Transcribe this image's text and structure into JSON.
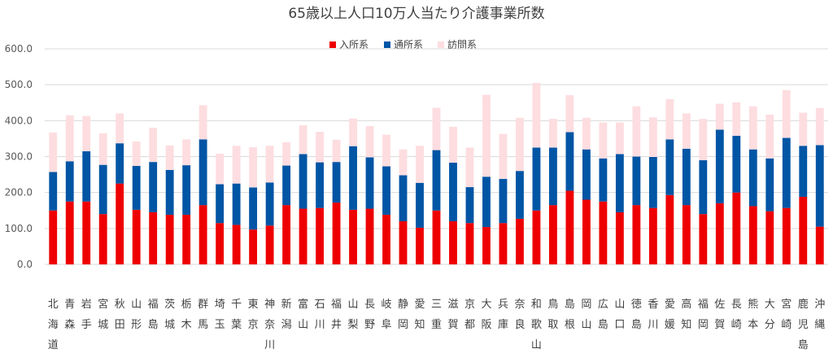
{
  "chart_data": {
    "type": "bar",
    "stacked": true,
    "title": "65歳以上人口10万人当たり介護事業所数",
    "ylim": [
      0,
      600
    ],
    "yticks": [
      "0.0",
      "100.0",
      "200.0",
      "300.0",
      "400.0",
      "500.0",
      "600.0"
    ],
    "grid": true,
    "legend_position": "top-center",
    "categories": [
      "北海道",
      "青森",
      "岩手",
      "宮城",
      "秋田",
      "山形",
      "福島",
      "茨城",
      "栃木",
      "群馬",
      "埼玉",
      "千葉",
      "東京",
      "神奈川",
      "新潟",
      "富山",
      "石川",
      "福井",
      "山梨",
      "長野",
      "岐阜",
      "静岡",
      "愛知",
      "三重",
      "滋賀",
      "京都",
      "大阪",
      "兵庫",
      "奈良",
      "和歌山",
      "鳥取",
      "島根",
      "岡山",
      "広島",
      "山口",
      "徳島",
      "香川",
      "愛媛",
      "高知",
      "福岡",
      "佐賀",
      "長崎",
      "熊本",
      "大分",
      "宮崎",
      "鹿児島",
      "沖縄"
    ],
    "series": [
      {
        "name": "入所系",
        "color": "#ee0000",
        "values": [
          150,
          175,
          175,
          140,
          225,
          152,
          145,
          138,
          138,
          165,
          115,
          110,
          97,
          108,
          165,
          155,
          157,
          172,
          152,
          155,
          138,
          120,
          102,
          150,
          120,
          115,
          104,
          115,
          127,
          150,
          165,
          205,
          180,
          175,
          145,
          165,
          157,
          193,
          165,
          140,
          170,
          200,
          162,
          148,
          157,
          188,
          105
        ]
      },
      {
        "name": "通所系",
        "color": "#0055a5",
        "values": [
          107,
          112,
          140,
          137,
          112,
          122,
          140,
          125,
          138,
          183,
          108,
          115,
          117,
          120,
          110,
          152,
          127,
          113,
          177,
          143,
          135,
          128,
          125,
          168,
          163,
          100,
          140,
          123,
          133,
          175,
          160,
          163,
          140,
          120,
          162,
          135,
          142,
          155,
          157,
          150,
          205,
          158,
          158,
          147,
          195,
          142,
          227
        ]
      },
      {
        "name": "訪問系",
        "color": "#fddde0",
        "values": [
          110,
          128,
          98,
          88,
          83,
          68,
          95,
          68,
          72,
          95,
          85,
          105,
          112,
          102,
          65,
          80,
          85,
          62,
          77,
          87,
          88,
          72,
          103,
          118,
          100,
          110,
          228,
          125,
          148,
          180,
          80,
          103,
          88,
          100,
          88,
          140,
          110,
          112,
          98,
          115,
          72,
          93,
          120,
          122,
          133,
          92,
          103
        ]
      }
    ]
  }
}
